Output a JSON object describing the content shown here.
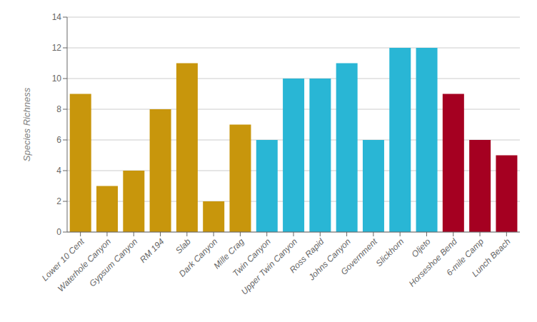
{
  "chart_data": {
    "type": "bar",
    "categories": [
      "Lower 10 Cent",
      "Waterhole Canyon",
      "Gypsum Canyon",
      "RM 194",
      "Slab",
      "Dark Canyon",
      "Mille Crag",
      "Twin Canyon",
      "Upper Twin Canyon",
      "Ross Rapid",
      "Johns Canyon",
      "Government",
      "Slickhorn",
      "Oljeto",
      "Horseshoe Bend",
      "6-mile Camp",
      "Lunch Beach"
    ],
    "values": [
      9,
      3,
      4,
      8,
      11,
      2,
      7,
      6,
      10,
      10,
      11,
      6,
      12,
      12,
      9,
      6,
      5
    ],
    "colors": [
      "#C8960C",
      "#C8960C",
      "#C8960C",
      "#C8960C",
      "#C8960C",
      "#C8960C",
      "#C8960C",
      "#29B6D5",
      "#29B6D5",
      "#29B6D5",
      "#29B6D5",
      "#29B6D5",
      "#29B6D5",
      "#29B6D5",
      "#A50021",
      "#A50021",
      "#A50021"
    ],
    "ylabel": "Species Richness",
    "ylim": [
      0,
      14
    ],
    "yticks": [
      0,
      2,
      4,
      6,
      8,
      10,
      12,
      14
    ],
    "grid": true
  }
}
